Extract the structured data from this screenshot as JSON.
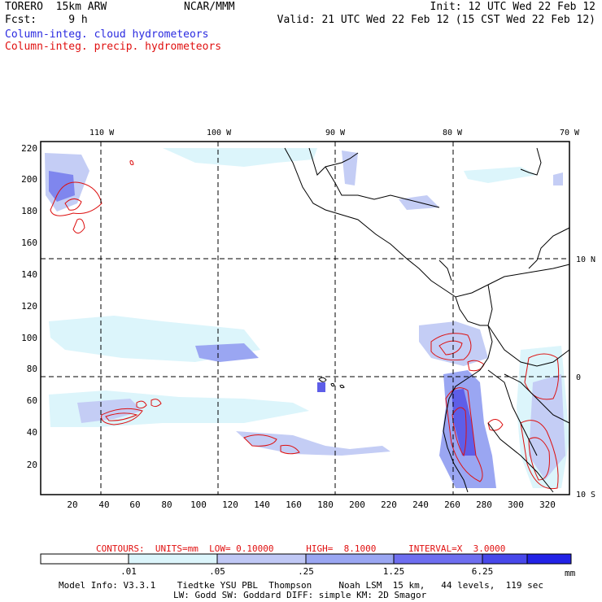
{
  "header": {
    "line1_left": "TORERO  15km ARW",
    "line2_left": "Fcst:     9 h",
    "center": "NCAR/MMM",
    "line1_right": "Init: 12 UTC Wed 22 Feb 12",
    "line2_right": "Valid: 21 UTC Wed 22 Feb 12 (15 CST Wed 22 Feb 12)"
  },
  "legend": {
    "cloud_label": "Column-integ. cloud hydrometeors",
    "precip_label": "Column-integ. precip. hydrometeors",
    "cloud_color": "#3333ee",
    "precip_color": "#dd1111"
  },
  "map": {
    "top_lon_labels": [
      "110 W",
      "100 W",
      "90 W",
      "80 W",
      "70 W"
    ],
    "right_lat_labels": [
      "10 N",
      "0",
      "10 S"
    ],
    "y_ticks": [
      "220",
      "200",
      "180",
      "160",
      "140",
      "120",
      "100",
      "80",
      "60",
      "40",
      "20"
    ],
    "x_ticks": [
      "20",
      "40",
      "60",
      "80",
      "100",
      "120",
      "140",
      "160",
      "180",
      "200",
      "220",
      "240",
      "260",
      "280",
      "300",
      "320"
    ],
    "grid_range_x": [
      1,
      335
    ],
    "grid_range_y": [
      1,
      225
    ]
  },
  "contours": {
    "info": "CONTOURS:  UNITS=mm  LOW= 0.10000      HIGH=  8.1000      INTERVAL=X  3.0000"
  },
  "colorbar": {
    "labels": [
      ".01",
      ".05",
      ".25",
      "1.25",
      "6.25"
    ],
    "unit": "mm",
    "colors": [
      "#ffffff",
      "#dcf5fb",
      "#c0c8f5",
      "#9aa6f2",
      "#6e6ef0",
      "#4848ea",
      "#2222e6"
    ]
  },
  "model_info": {
    "line1": "Model Info: V3.3.1    Tiedtke YSU PBL  Thompson     Noah LSM  15 km,   44 levels,  119 sec",
    "line2": "LW: Godd SW: Goddard DIFF: simple KM: 2D Smagor"
  }
}
